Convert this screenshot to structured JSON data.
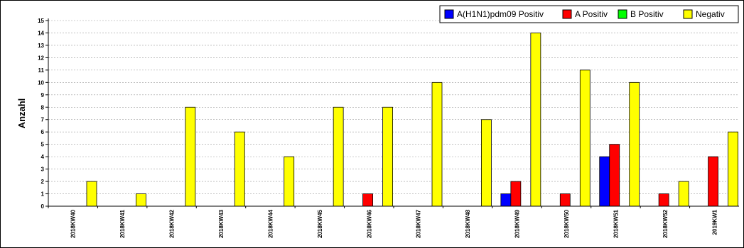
{
  "chart_data": {
    "type": "bar",
    "ylabel": "Anzahl",
    "xlabel": "",
    "ylim": [
      0,
      15
    ],
    "yticks": [
      "0",
      "1",
      "2",
      "3",
      "4",
      "5",
      "6",
      "7",
      "8",
      "9",
      "10",
      "11",
      "12",
      "13",
      "14",
      "15"
    ],
    "grid": true,
    "legend_position": "top-right",
    "categories": [
      "2018KW40",
      "2018KW41",
      "2018KW42",
      "2018KW43",
      "2018KW44",
      "2018KW45",
      "2018KW46",
      "2018KW47",
      "2018KW48",
      "2018KW49",
      "2018KW50",
      "2018KW51",
      "2018KW52",
      "2019KW1"
    ],
    "series": [
      {
        "name": "A(H1N1)pdm09 Positiv",
        "color": "#0000ff",
        "values": [
          0,
          0,
          0,
          0,
          0,
          0,
          0,
          0,
          0,
          1,
          0,
          4,
          0,
          0
        ]
      },
      {
        "name": "A Positiv",
        "color": "#ff0000",
        "values": [
          0,
          0,
          0,
          0,
          0,
          0,
          1,
          0,
          0,
          2,
          1,
          5,
          1,
          4
        ]
      },
      {
        "name": "B Positiv",
        "color": "#00ff00",
        "values": [
          0,
          0,
          0,
          0,
          0,
          0,
          0,
          0,
          0,
          0,
          0,
          0,
          0,
          0
        ]
      },
      {
        "name": "Negativ",
        "color": "#ffff00",
        "values": [
          2,
          1,
          8,
          6,
          4,
          8,
          8,
          10,
          7,
          14,
          11,
          10,
          2,
          6
        ]
      }
    ]
  }
}
